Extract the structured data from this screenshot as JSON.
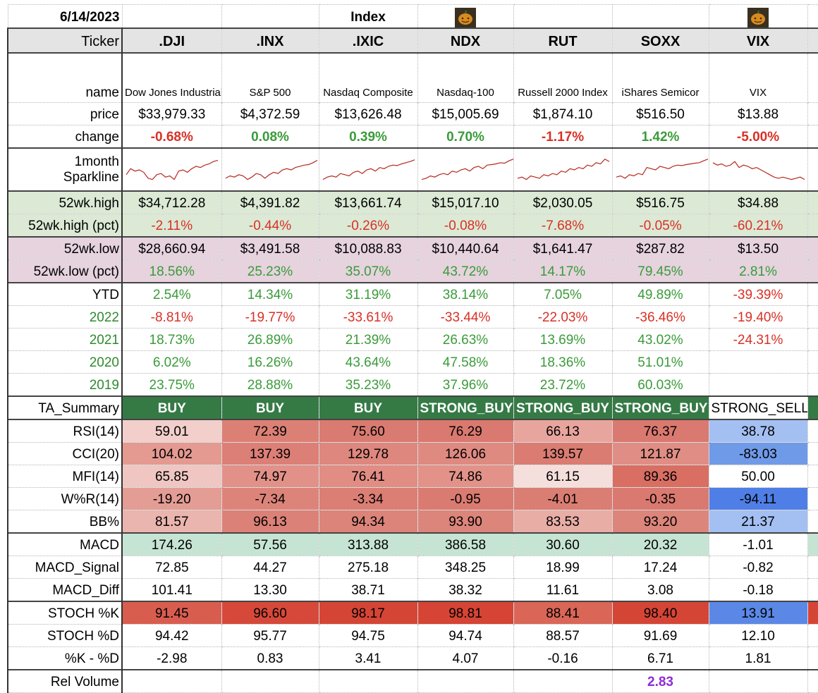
{
  "date": "6/14/2023",
  "index_label": "Index",
  "icon": "pumpkin-avatar-icon",
  "label_header": "Ticker",
  "tickers": [
    {
      "symbol": ".DJI",
      "name": "Dow Jones Industrial Average",
      "price": "$33,979.33",
      "change": "-0.68%",
      "hi": "$34,712.28",
      "hi_pct": "-2.11%",
      "lo": "$28,660.94",
      "lo_pct": "18.56%",
      "ytd": "2.54%",
      "y2022": "-8.81%",
      "y2021": "18.73%",
      "y2020": "6.02%",
      "y2019": "23.75%",
      "ta": "BUY",
      "rsi": "59.01",
      "cci": "104.02",
      "mfi": "65.85",
      "wr": "-19.20",
      "bb": "81.57",
      "macd": "174.26",
      "macd_sig": "72.85",
      "macd_diff": "101.41",
      "stk": "91.45",
      "std": "94.42",
      "kd": "-2.98",
      "rel": "",
      "spark": [
        0.3,
        0.55,
        0.45,
        0.5,
        0.4,
        0.15,
        0.1,
        0.3,
        0.35,
        0.2,
        0.25,
        0.1,
        0.45,
        0.5,
        0.4,
        0.55,
        0.65,
        0.6,
        0.7,
        0.75,
        0.85,
        0.9
      ]
    },
    {
      "symbol": ".INX",
      "name": "S&P 500",
      "price": "$4,372.59",
      "change": "0.08%",
      "hi": "$4,391.82",
      "hi_pct": "-0.44%",
      "lo": "$3,491.58",
      "lo_pct": "25.23%",
      "ytd": "14.34%",
      "y2022": "-19.77%",
      "y2021": "26.89%",
      "y2020": "16.26%",
      "y2019": "28.88%",
      "ta": "BUY",
      "rsi": "72.39",
      "cci": "137.39",
      "mfi": "74.97",
      "wr": "-7.34",
      "bb": "96.13",
      "macd": "57.56",
      "macd_sig": "44.27",
      "macd_diff": "13.30",
      "stk": "96.60",
      "std": "95.77",
      "kd": "0.83",
      "rel": "",
      "spark": [
        0.15,
        0.25,
        0.2,
        0.3,
        0.25,
        0.1,
        0.2,
        0.35,
        0.3,
        0.15,
        0.3,
        0.4,
        0.35,
        0.5,
        0.55,
        0.5,
        0.6,
        0.65,
        0.7,
        0.72,
        0.8,
        0.9
      ]
    },
    {
      "symbol": ".IXIC",
      "name": "Nasdaq Composite",
      "price": "$13,626.48",
      "change": "0.39%",
      "hi": "$13,661.74",
      "hi_pct": "-0.26%",
      "lo": "$10,088.83",
      "lo_pct": "35.07%",
      "ytd": "31.19%",
      "y2022": "-33.61%",
      "y2021": "21.39%",
      "y2020": "43.64%",
      "y2019": "35.23%",
      "ta": "BUY",
      "rsi": "75.60",
      "cci": "129.78",
      "mfi": "76.41",
      "wr": "-3.34",
      "bb": "94.34",
      "macd": "313.88",
      "macd_sig": "275.18",
      "macd_diff": "38.71",
      "stk": "98.17",
      "std": "94.75",
      "kd": "3.41",
      "rel": "",
      "spark": [
        0.1,
        0.2,
        0.25,
        0.2,
        0.35,
        0.3,
        0.25,
        0.4,
        0.45,
        0.35,
        0.5,
        0.55,
        0.45,
        0.6,
        0.55,
        0.65,
        0.7,
        0.68,
        0.75,
        0.8,
        0.85,
        0.92
      ]
    },
    {
      "symbol": "NDX",
      "name": "Nasdaq-100",
      "price": "$15,005.69",
      "change": "0.70%",
      "hi": "$15,017.10",
      "hi_pct": "-0.08%",
      "lo": "$10,440.64",
      "lo_pct": "43.72%",
      "ytd": "38.14%",
      "y2022": "-33.44%",
      "y2021": "26.63%",
      "y2020": "47.58%",
      "y2019": "37.96%",
      "ta": "STRONG_BUY",
      "rsi": "76.29",
      "cci": "126.06",
      "mfi": "74.86",
      "wr": "-0.95",
      "bb": "93.90",
      "macd": "386.58",
      "macd_sig": "348.25",
      "macd_diff": "38.32",
      "stk": "98.81",
      "std": "94.74",
      "kd": "4.07",
      "rel": "",
      "spark": [
        0.1,
        0.15,
        0.25,
        0.2,
        0.3,
        0.35,
        0.3,
        0.45,
        0.4,
        0.5,
        0.55,
        0.45,
        0.6,
        0.65,
        0.55,
        0.7,
        0.72,
        0.75,
        0.8,
        0.78,
        0.88,
        0.95
      ]
    },
    {
      "symbol": "RUT",
      "name": "Russell 2000 Index",
      "price": "$1,874.10",
      "change": "-1.17%",
      "hi": "$2,030.05",
      "hi_pct": "-7.68%",
      "lo": "$1,641.47",
      "lo_pct": "14.17%",
      "ytd": "7.05%",
      "y2022": "-22.03%",
      "y2021": "13.69%",
      "y2020": "18.36%",
      "y2019": "23.72%",
      "ta": "STRONG_BUY",
      "rsi": "66.13",
      "cci": "139.57",
      "mfi": "61.15",
      "wr": "-4.01",
      "bb": "83.53",
      "macd": "30.60",
      "macd_sig": "18.99",
      "macd_diff": "11.61",
      "stk": "88.41",
      "std": "88.57",
      "kd": "-0.16",
      "rel": "",
      "spark": [
        0.15,
        0.2,
        0.1,
        0.25,
        0.2,
        0.15,
        0.3,
        0.25,
        0.35,
        0.3,
        0.45,
        0.4,
        0.55,
        0.5,
        0.6,
        0.55,
        0.7,
        0.65,
        0.8,
        0.75,
        0.95,
        0.85
      ]
    },
    {
      "symbol": "SOXX",
      "name": "iShares Semicor",
      "price": "$516.50",
      "change": "1.42%",
      "hi": "$516.75",
      "hi_pct": "-0.05%",
      "lo": "$287.82",
      "lo_pct": "79.45%",
      "ytd": "49.89%",
      "y2022": "-36.46%",
      "y2021": "43.02%",
      "y2020": "51.01%",
      "y2019": "60.03%",
      "ta": "STRONG_BUY",
      "rsi": "76.37",
      "cci": "121.87",
      "mfi": "89.36",
      "wr": "-0.35",
      "bb": "93.20",
      "macd": "20.32",
      "macd_sig": "17.24",
      "macd_diff": "3.08",
      "stk": "98.40",
      "std": "91.69",
      "kd": "6.71",
      "rel": "2.83",
      "spark": [
        0.2,
        0.25,
        0.15,
        0.3,
        0.25,
        0.35,
        0.3,
        0.6,
        0.55,
        0.5,
        0.65,
        0.6,
        0.55,
        0.65,
        0.7,
        0.68,
        0.72,
        0.75,
        0.78,
        0.8,
        0.88,
        0.95
      ]
    },
    {
      "symbol": "VIX",
      "name": "VIX",
      "price": "$13.88",
      "change": "-5.00%",
      "hi": "$34.88",
      "hi_pct": "-60.21%",
      "lo": "$13.50",
      "lo_pct": "2.81%",
      "ytd": "-39.39%",
      "y2022": "-19.40%",
      "y2021": "-24.31%",
      "y2020": "",
      "y2019": "",
      "ta": "STRONG_SELL",
      "rsi": "38.78",
      "cci": "-83.03",
      "mfi": "50.00",
      "wr": "-94.11",
      "bb": "21.37",
      "macd": "-1.01",
      "macd_sig": "-0.82",
      "macd_diff": "-0.18",
      "stk": "13.91",
      "std": "12.10",
      "kd": "1.81",
      "rel": "",
      "spark": [
        0.8,
        0.7,
        0.75,
        0.65,
        0.7,
        0.85,
        0.6,
        0.7,
        0.65,
        0.55,
        0.6,
        0.5,
        0.4,
        0.3,
        0.2,
        0.15,
        0.2,
        0.15,
        0.1,
        0.15,
        0.2,
        0.1
      ]
    }
  ],
  "labels": {
    "name": "name",
    "price": "price",
    "change": "change",
    "spark1": "1month",
    "spark2": "Sparkline",
    "hi": "52wk.high",
    "hi_pct": "52wk.high (pct)",
    "lo": "52wk.low",
    "lo_pct": "52wk.low (pct)",
    "ytd": "YTD",
    "y2022": "2022",
    "y2021": "2021",
    "y2020": "2020",
    "y2019": "2019",
    "ta": "TA_Summary",
    "rsi": "RSI(14)",
    "cci": "CCI(20)",
    "mfi": "MFI(14)",
    "wr": "W%R(14)",
    "bb": "BB%",
    "macd": "MACD",
    "macd_sig": "MACD_Signal",
    "macd_diff": "MACD_Diff",
    "stk": "STOCH %K",
    "std": "STOCH %D",
    "kd": "%K - %D",
    "rel": "Rel Volume"
  },
  "colors": {
    "rsi": [
      "#f2cfcb",
      "#dc8076",
      "#da7b71",
      "#da796f",
      "#e8a59d",
      "#da796f",
      "#a4bff2"
    ],
    "cci": [
      "#e49a91",
      "#dc7f76",
      "#de877e",
      "#df8a81",
      "#da7c72",
      "#e08e85",
      "#6f9ae8"
    ],
    "mfi": [
      "#efc6c1",
      "#e29189",
      "#e18d84",
      "#e29288",
      "#f5dfdc",
      "#d96e63",
      "#ffffff"
    ],
    "wr": [
      "#e39d94",
      "#dd847a",
      "#db7e74",
      "#da7b71",
      "#da7d73",
      "#d9796f",
      "#4f7fe6"
    ],
    "bb": [
      "#eab5ae",
      "#dc8177",
      "#dc847a",
      "#dc857b",
      "#e8ada5",
      "#dc857b",
      "#a4bff2"
    ],
    "stk": [
      "#d95d4f",
      "#d6493a",
      "#d54536",
      "#d54434",
      "#d96657",
      "#d54536",
      "#5b88e6"
    ]
  }
}
